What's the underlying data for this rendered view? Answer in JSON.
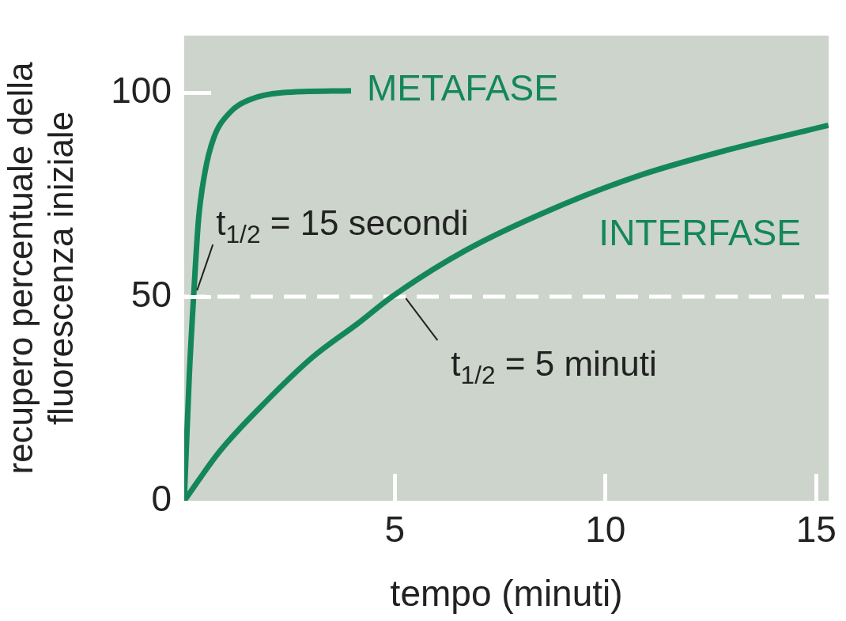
{
  "chart_data": {
    "type": "line",
    "xlabel": "tempo (minuti)",
    "ylabel": "recupero percentuale della\nfluorescenza iniziale",
    "xlim": [
      0,
      15.3
    ],
    "xticks": [
      5,
      10,
      15
    ],
    "ylim": [
      0,
      114
    ],
    "yticks": [
      0,
      50,
      100
    ],
    "legend": false,
    "series": [
      {
        "name": "METAFASE",
        "color": "#14875a",
        "x": [
          0,
          0.12,
          0.23,
          0.34,
          0.49,
          0.7,
          1.07,
          1.58,
          2.31,
          3.96
        ],
        "values": [
          0,
          30.6,
          51.3,
          69,
          80.4,
          88.9,
          95,
          98.4,
          100,
          100.5
        ]
      },
      {
        "name": "INTERFASE",
        "color": "#14875a",
        "x": [
          0,
          0.85,
          1.95,
          3.05,
          4.14,
          4.93,
          6.65,
          8.74,
          10.83,
          12.91,
          15.29
        ],
        "values": [
          0,
          12.2,
          24.4,
          35.2,
          43.6,
          50,
          61.2,
          71.5,
          79.8,
          86,
          92
        ]
      }
    ],
    "ref_lines": [
      {
        "axis": "y",
        "value": 50,
        "color": "#ffffff",
        "line_style": "dashed"
      }
    ],
    "annotations": [
      {
        "text": "t$_{1/2}$ = 15 secondi",
        "x": 0.23,
        "y": 50
      },
      {
        "text": "t$_{1/2}$ = 5 minuti",
        "x": 4.98,
        "y": 50
      }
    ]
  }
}
